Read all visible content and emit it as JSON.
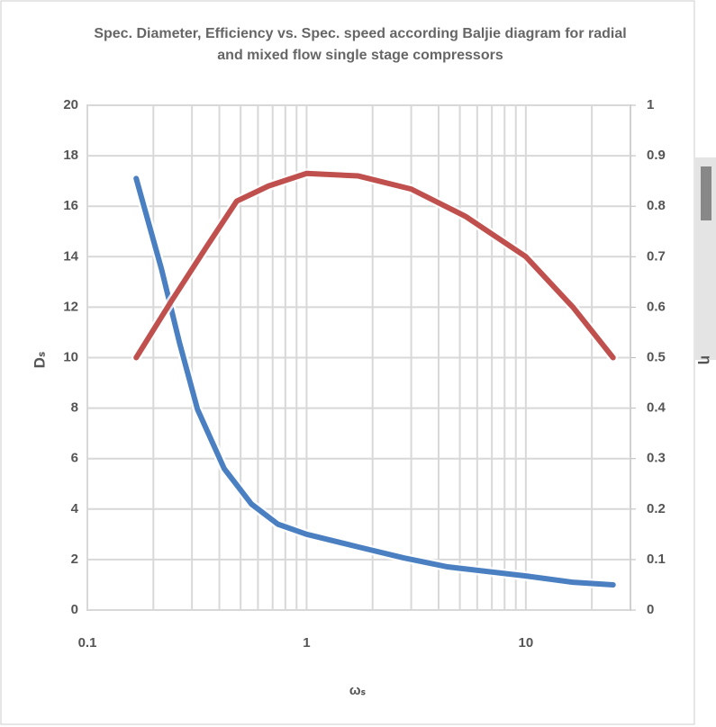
{
  "chart_data": {
    "type": "line",
    "title": "Spec. Diameter, Efficiency vs. Spec. speed according Baljie diagram for radial and mixed flow single stage compressors",
    "xlabel": "ωₛ",
    "ylabel": "Dₛ",
    "y2label": "η",
    "xscale": "log",
    "xlim": [
      0.1,
      30
    ],
    "xticks": [
      0.1,
      1,
      10
    ],
    "xminorticks": [
      0.2,
      0.3,
      0.4,
      0.5,
      0.6,
      0.7,
      0.8,
      0.9,
      2,
      3,
      4,
      5,
      6,
      7,
      8,
      9,
      20
    ],
    "ylim": [
      0,
      20
    ],
    "yticks": [
      0,
      2,
      4,
      6,
      8,
      10,
      12,
      14,
      16,
      18,
      20
    ],
    "y2lim": [
      0,
      1
    ],
    "y2ticks": [
      0,
      0.1,
      0.2,
      0.3,
      0.4,
      0.5,
      0.6,
      0.7,
      0.8,
      0.9,
      1
    ],
    "grid": true,
    "series": [
      {
        "color": "#4a7fc1",
        "axis": "y",
        "x": [
          0.167,
          0.218,
          0.263,
          0.318,
          0.421,
          0.56,
          0.74,
          1,
          1.72,
          2.76,
          4.4,
          10,
          16.4,
          25
        ],
        "values": [
          17.1,
          13.5,
          10.6,
          7.95,
          5.6,
          4.2,
          3.4,
          3.0,
          2.5,
          2.07,
          1.71,
          1.35,
          1.1,
          1.0
        ]
      },
      {
        "color": "#c0504d",
        "axis": "y2",
        "x": [
          0.167,
          0.24,
          0.35,
          0.48,
          0.67,
          1,
          1.72,
          3.0,
          5.3,
          10,
          16.4,
          25
        ],
        "values": [
          0.5,
          0.61,
          0.72,
          0.81,
          0.84,
          0.865,
          0.86,
          0.834,
          0.78,
          0.7,
          0.6,
          0.5
        ]
      }
    ]
  }
}
